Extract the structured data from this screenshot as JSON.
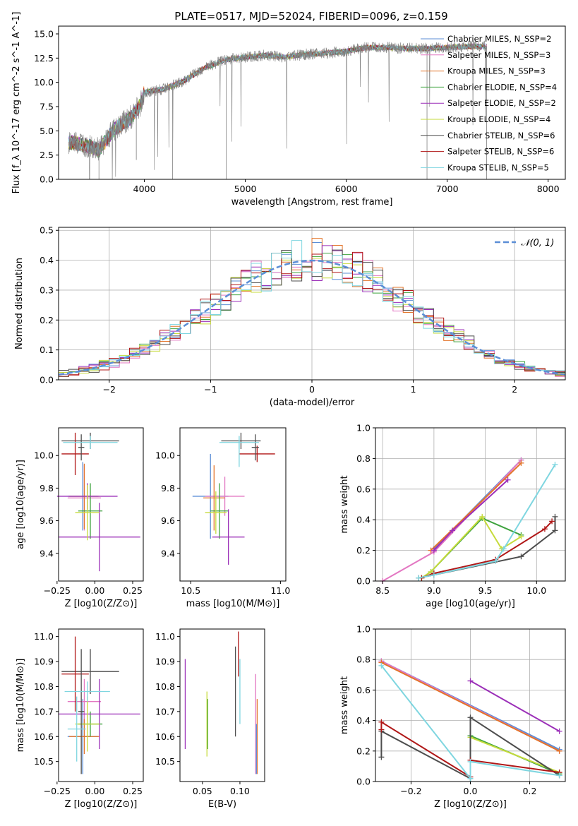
{
  "title": "PLATE=0517, MJD=52024, FIBERID=0096, z=0.159",
  "colors": {
    "chabrier_miles": "#5b8ed6",
    "salpeter_miles": "#e377c2",
    "kroupa_miles": "#e3742a",
    "chabrier_elodie": "#3fa33f",
    "salpeter_elodie": "#9b2fb8",
    "kroupa_elodie": "#c6db3c",
    "chabrier_stelib": "#4d4d4d",
    "salpeter_stelib": "#b01717",
    "kroupa_stelib": "#7fd6e0",
    "data_gray": "#808080",
    "gaussian": "#5b8ed6",
    "grid": "#b0b0b0"
  },
  "chart_data": [
    {
      "id": "spectrum",
      "type": "line",
      "title": "PLATE=0517, MJD=52024, FIBERID=0096, z=0.159",
      "xlabel": "wavelength [Angstrom, rest frame]",
      "ylabel": "Flux [f_λ 10^-17 erg cm^-2 s^-1 A^-1]",
      "xlim": [
        3150,
        8170
      ],
      "ylim": [
        0,
        15.8
      ],
      "xticks": [
        "4000",
        "5000",
        "6000",
        "7000",
        "8000"
      ],
      "yticks": [
        "0.0",
        "2.5",
        "5.0",
        "7.5",
        "10.0",
        "12.5",
        "15.0"
      ],
      "xtick_values": [
        4000,
        5000,
        6000,
        7000,
        8000
      ],
      "ytick_values": [
        0,
        2.5,
        5,
        7.5,
        10,
        12.5,
        15
      ],
      "grid": false,
      "legend_position": "top-right",
      "legend": [
        {
          "label": "Chabrier MILES, N_SSP=2",
          "color": "#5b8ed6"
        },
        {
          "label": "Salpeter MILES, N_SSP=3",
          "color": "#e377c2"
        },
        {
          "label": "Kroupa MILES, N_SSP=3",
          "color": "#e3742a"
        },
        {
          "label": "Chabrier ELODIE, N_SSP=4",
          "color": "#3fa33f"
        },
        {
          "label": "Salpeter ELODIE, N_SSP=2",
          "color": "#9b2fb8"
        },
        {
          "label": "Kroupa ELODIE, N_SSP=4",
          "color": "#c6db3c"
        },
        {
          "label": "Chabrier STELIB, N_SSP=6",
          "color": "#4d4d4d"
        },
        {
          "label": "Salpeter STELIB, N_SSP=6",
          "color": "#b01717"
        },
        {
          "label": "Kroupa STELIB, N_SSP=5",
          "color": "#7fd6e0"
        }
      ],
      "continuum": [
        [
          3250,
          3.8
        ],
        [
          3400,
          3.6
        ],
        [
          3550,
          3.0
        ],
        [
          3700,
          5.2
        ],
        [
          3850,
          6.2
        ],
        [
          3950,
          7.5
        ],
        [
          4000,
          9.0
        ],
        [
          4200,
          9.3
        ],
        [
          4400,
          10.2
        ],
        [
          4600,
          11.5
        ],
        [
          4800,
          12.3
        ],
        [
          5000,
          12.6
        ],
        [
          5200,
          12.8
        ],
        [
          5400,
          12.6
        ],
        [
          5600,
          12.9
        ],
        [
          5800,
          13.0
        ],
        [
          6000,
          13.2
        ],
        [
          6200,
          13.6
        ],
        [
          6400,
          13.6
        ],
        [
          6600,
          13.5
        ],
        [
          6800,
          13.5
        ],
        [
          7000,
          13.6
        ],
        [
          7200,
          13.7
        ],
        [
          7390,
          13.7
        ]
      ],
      "x_range": [
        3250,
        7390
      ]
    },
    {
      "id": "residuals",
      "type": "histogram",
      "xlabel": "(data-model)/error",
      "ylabel": "Normed distribution",
      "xlim": [
        -2.5,
        2.5
      ],
      "ylim": [
        0,
        0.51
      ],
      "xticks": [
        "−2",
        "−1",
        "0",
        "1",
        "2"
      ],
      "yticks": [
        "0.0",
        "0.1",
        "0.2",
        "0.3",
        "0.4",
        "0.5"
      ],
      "xtick_values": [
        -2,
        -1,
        0,
        1,
        2
      ],
      "ytick_values": [
        0,
        0.1,
        0.2,
        0.3,
        0.4,
        0.5
      ],
      "grid": true,
      "legend_position": "top-right",
      "gaussian_label": "𝒩(0, 1)",
      "bins": {
        "start": -2.5,
        "width": 0.1,
        "count": 50
      }
    },
    {
      "id": "age_vs_Z",
      "type": "errorbar",
      "xlabel": "Z [log10(Z/Z⊙)]",
      "ylabel": "age [log10(age/yr)]",
      "xlim": [
        -0.24,
        0.32
      ],
      "ylim": [
        9.23,
        10.17
      ],
      "xticks": [
        "−0.25",
        "0.00",
        "0.25"
      ],
      "yticks": [
        "9.4",
        "9.6",
        "9.8",
        "10.0"
      ],
      "xtick_values": [
        -0.25,
        0,
        0.25
      ],
      "ytick_values": [
        9.4,
        9.6,
        9.8,
        10.0
      ],
      "points": [
        {
          "c": "#5b8ed6",
          "x": -0.08,
          "xe": 0.1,
          "y": 9.75,
          "ye": 0.21
        },
        {
          "c": "#e377c2",
          "x": -0.07,
          "xe": 0.11,
          "y": 9.74,
          "ye": 0.2
        },
        {
          "c": "#e3742a",
          "x": -0.07,
          "xe": 0.1,
          "y": 9.75,
          "ye": 0.2
        },
        {
          "c": "#3fa33f",
          "x": -0.03,
          "xe": 0.08,
          "y": 9.66,
          "ye": 0.17
        },
        {
          "c": "#9b2fb8",
          "x": 0.03,
          "xe": 0.27,
          "y": 9.5,
          "ye": 0.21
        },
        {
          "c": "#9b2fb8",
          "x": -0.05,
          "xe": 0.2,
          "y": 9.75,
          "ye": 0.08
        },
        {
          "c": "#c6db3c",
          "x": -0.05,
          "xe": 0.08,
          "y": 9.65,
          "ye": 0.17
        },
        {
          "c": "#4d4d4d",
          "x": -0.03,
          "xe": 0.19,
          "y": 10.09,
          "ye": 0.05
        },
        {
          "c": "#b01717",
          "x": -0.13,
          "xe": 0.09,
          "y": 10.01,
          "ye": 0.13
        },
        {
          "c": "#4d4d4d",
          "x": -0.09,
          "xe": 0.02,
          "y": 10.05,
          "ye": 0.08
        },
        {
          "c": "#7fd6e0",
          "x": -0.03,
          "xe": 0.18,
          "y": 10.08,
          "ye": 0.04
        }
      ]
    },
    {
      "id": "age_vs_mass",
      "type": "errorbar",
      "xlabel": "mass [log10(M/M⊙)]",
      "ylabel": "",
      "xlim": [
        10.44,
        11.03
      ],
      "ylim": [
        9.23,
        10.17
      ],
      "xticks": [
        "10.5",
        "11.0"
      ],
      "yticks": [
        "9.4",
        "9.6",
        "9.8",
        "10.0"
      ],
      "xtick_values": [
        10.5,
        11.0
      ],
      "ytick_values": [
        9.4,
        9.6,
        9.8,
        10.0
      ],
      "points": [
        {
          "c": "#5b8ed6",
          "x": 10.61,
          "xe": 0.1,
          "y": 9.75,
          "ye": 0.26
        },
        {
          "c": "#e377c2",
          "x": 10.69,
          "xe": 0.11,
          "y": 9.75,
          "ye": 0.12
        },
        {
          "c": "#e3742a",
          "x": 10.63,
          "xe": 0.06,
          "y": 9.74,
          "ye": 0.2
        },
        {
          "c": "#3fa33f",
          "x": 10.66,
          "xe": 0.05,
          "y": 9.66,
          "ye": 0.17
        },
        {
          "c": "#9b2fb8",
          "x": 10.71,
          "xe": 0.09,
          "y": 9.5,
          "ye": 0.17
        },
        {
          "c": "#c6db3c",
          "x": 10.64,
          "xe": 0.06,
          "y": 9.65,
          "ye": 0.13
        },
        {
          "c": "#4d4d4d",
          "x": 10.78,
          "xe": 0.11,
          "y": 10.09,
          "ye": 0.05
        },
        {
          "c": "#b01717",
          "x": 10.87,
          "xe": 0.1,
          "y": 10.01,
          "ye": 0.05
        },
        {
          "c": "#4d4d4d",
          "x": 10.86,
          "xe": 0.02,
          "y": 10.05,
          "ye": 0.08
        },
        {
          "c": "#7fd6e0",
          "x": 10.77,
          "xe": 0.11,
          "y": 10.08,
          "ye": 0.04
        },
        {
          "c": "#7fd6e0",
          "x": 10.77,
          "xe": 0.0,
          "y": 10.01,
          "ye": 0.08
        }
      ]
    },
    {
      "id": "mass_weight_vs_age",
      "type": "line",
      "xlabel": "age [log10(age/yr)]",
      "ylabel": "mass weight",
      "xlim": [
        8.43,
        10.28
      ],
      "ylim": [
        0,
        1.0
      ],
      "xticks": [
        "8.5",
        "9.0",
        "9.5",
        "10.0"
      ],
      "yticks": [
        "0.0",
        "0.2",
        "0.4",
        "0.6",
        "0.8",
        "1.0"
      ],
      "xtick_values": [
        8.5,
        9.0,
        9.5,
        10.0
      ],
      "ytick_values": [
        0,
        0.2,
        0.4,
        0.6,
        0.8,
        1.0
      ],
      "grid": true,
      "series": [
        {
          "c": "#5b8ed6",
          "pts": [
            [
              9.0,
              0.21
            ],
            [
              9.85,
              0.79
            ]
          ]
        },
        {
          "c": "#e377c2",
          "pts": [
            [
              8.5,
              0.0
            ],
            [
              9.0,
              0.19
            ],
            [
              9.85,
              0.79
            ]
          ]
        },
        {
          "c": "#e3742a",
          "pts": [
            [
              8.97,
              0.2
            ],
            [
              9.85,
              0.77
            ]
          ]
        },
        {
          "c": "#3fa33f",
          "pts": [
            [
              8.88,
              0.02
            ],
            [
              8.97,
              0.06
            ],
            [
              9.47,
              0.41
            ],
            [
              9.85,
              0.3
            ]
          ]
        },
        {
          "c": "#9b2fb8",
          "pts": [
            [
              9.0,
              0.2
            ],
            [
              9.18,
              0.33
            ],
            [
              9.72,
              0.66
            ]
          ]
        },
        {
          "c": "#c6db3c",
          "pts": [
            [
              8.88,
              0.02
            ],
            [
              8.97,
              0.06
            ],
            [
              9.47,
              0.42
            ],
            [
              9.66,
              0.21
            ],
            [
              9.85,
              0.29
            ]
          ]
        },
        {
          "c": "#4d4d4d",
          "pts": [
            [
              8.85,
              0.02
            ],
            [
              9.0,
              0.04
            ],
            [
              9.85,
              0.16
            ],
            [
              10.18,
              0.33
            ],
            [
              10.18,
              0.42
            ]
          ]
        },
        {
          "c": "#b01717",
          "pts": [
            [
              8.88,
              0.02
            ],
            [
              9.0,
              0.05
            ],
            [
              9.6,
              0.14
            ],
            [
              10.08,
              0.34
            ],
            [
              10.15,
              0.39
            ]
          ]
        },
        {
          "c": "#7fd6e0",
          "pts": [
            [
              8.85,
              0.02
            ],
            [
              9.0,
              0.04
            ],
            [
              9.6,
              0.13
            ],
            [
              9.68,
              0.21
            ],
            [
              10.18,
              0.76
            ]
          ]
        }
      ]
    },
    {
      "id": "mass_vs_Z",
      "type": "errorbar",
      "xlabel": "Z [log10(Z/Z⊙)]",
      "ylabel": "mass [log10(M/M⊙)]",
      "xlim": [
        -0.24,
        0.32
      ],
      "ylim": [
        10.42,
        11.03
      ],
      "xticks": [
        "−0.25",
        "0.00",
        "0.25"
      ],
      "yticks": [
        "10.5",
        "10.6",
        "10.7",
        "10.8",
        "10.9",
        "11.0"
      ],
      "xtick_values": [
        -0.25,
        0,
        0.25
      ],
      "ytick_values": [
        10.5,
        10.6,
        10.7,
        10.8,
        10.9,
        11.0
      ],
      "points": [
        {
          "c": "#5b8ed6",
          "x": -0.08,
          "xe": 0.1,
          "y": 10.6,
          "ye": 0.15
        },
        {
          "c": "#e377c2",
          "x": -0.07,
          "xe": 0.11,
          "y": 10.74,
          "ye": 0.09
        },
        {
          "c": "#e3742a",
          "x": -0.07,
          "xe": 0.1,
          "y": 10.6,
          "ye": 0.07
        },
        {
          "c": "#3fa33f",
          "x": -0.03,
          "xe": 0.08,
          "y": 10.65,
          "ye": 0.05
        },
        {
          "c": "#9b2fb8",
          "x": 0.03,
          "xe": 0.27,
          "y": 10.69,
          "ye": 0.14
        },
        {
          "c": "#c6db3c",
          "x": -0.05,
          "xe": 0.08,
          "y": 10.65,
          "ye": 0.11
        },
        {
          "c": "#4d4d4d",
          "x": -0.03,
          "xe": 0.19,
          "y": 10.86,
          "ye": 0.09
        },
        {
          "c": "#b01717",
          "x": -0.13,
          "xe": 0.09,
          "y": 10.85,
          "ye": 0.15
        },
        {
          "c": "#4d4d4d",
          "x": -0.09,
          "xe": 0.02,
          "y": 10.7,
          "ye": 0.25
        },
        {
          "c": "#7fd6e0",
          "x": -0.05,
          "xe": 0.15,
          "y": 10.78,
          "ye": 0.04
        },
        {
          "c": "#7fd6e0",
          "x": -0.12,
          "xe": 0.06,
          "y": 10.63,
          "ye": 0.13
        }
      ]
    },
    {
      "id": "ebv",
      "type": "errorbar",
      "xlabel": "E(B-V)",
      "ylabel": "",
      "xlim": [
        0.02,
        0.133
      ],
      "ylim": [
        10.42,
        11.03
      ],
      "xticks": [
        "0.05",
        "0.10"
      ],
      "yticks": [
        "10.5",
        "10.6",
        "10.7",
        "10.8",
        "10.9",
        "11.0"
      ],
      "xtick_values": [
        0.05,
        0.1
      ],
      "ytick_values": [
        10.5,
        10.6,
        10.7,
        10.8,
        10.9,
        11.0
      ],
      "points": [
        {
          "c": "#9b2fb8",
          "x": 0.027,
          "xe": 0,
          "y": 10.73,
          "ye": 0.18
        },
        {
          "c": "#3fa33f",
          "x": 0.057,
          "xe": 0,
          "y": 10.65,
          "ye": 0.1
        },
        {
          "c": "#c6db3c",
          "x": 0.056,
          "xe": 0,
          "y": 10.65,
          "ye": 0.13
        },
        {
          "c": "#4d4d4d",
          "x": 0.094,
          "xe": 0,
          "y": 10.78,
          "ye": 0.18
        },
        {
          "c": "#b01717",
          "x": 0.098,
          "xe": 0,
          "y": 10.93,
          "ye": 0.09
        },
        {
          "c": "#7fd6e0",
          "x": 0.1,
          "xe": 0,
          "y": 10.78,
          "ye": 0.13
        },
        {
          "c": "#e377c2",
          "x": 0.121,
          "xe": 0,
          "y": 10.65,
          "ye": 0.2
        },
        {
          "c": "#e3742a",
          "x": 0.123,
          "xe": 0,
          "y": 10.6,
          "ye": 0.15
        },
        {
          "c": "#5b8ed6",
          "x": 0.122,
          "xe": 0,
          "y": 10.55,
          "ye": 0.1
        }
      ]
    },
    {
      "id": "mass_weight_vs_Z",
      "type": "line",
      "xlabel": "Z [log10(Z/Z⊙)]",
      "ylabel": "mass weight",
      "xlim": [
        -0.32,
        0.32
      ],
      "ylim": [
        0,
        1.0
      ],
      "xticks": [
        "−0.2",
        "0.0",
        "0.2"
      ],
      "yticks": [
        "0.0",
        "0.2",
        "0.4",
        "0.6",
        "0.8",
        "1.0"
      ],
      "xtick_values": [
        -0.2,
        0.0,
        0.2
      ],
      "ytick_values": [
        0,
        0.2,
        0.4,
        0.6,
        0.8,
        1.0
      ],
      "grid": true,
      "series": [
        {
          "c": "#5b8ed6",
          "pts": [
            [
              -0.3,
              0.79
            ],
            [
              0.3,
              0.21
            ]
          ]
        },
        {
          "c": "#e377c2",
          "pts": [
            [
              -0.3,
              0.79
            ],
            [
              0.3,
              0.2
            ]
          ]
        },
        {
          "c": "#e3742a",
          "pts": [
            [
              -0.3,
              0.78
            ],
            [
              0.3,
              0.2
            ]
          ]
        },
        {
          "c": "#9b2fb8",
          "pts": [
            [
              0.0,
              0.66
            ],
            [
              0.3,
              0.33
            ]
          ]
        },
        {
          "c": "#3fa33f",
          "pts": [
            [
              0.0,
              0.3
            ],
            [
              0.3,
              0.05
            ]
          ]
        },
        {
          "c": "#c6db3c",
          "pts": [
            [
              0.0,
              0.29
            ],
            [
              0.3,
              0.06
            ]
          ]
        },
        {
          "c": "#4d4d4d",
          "pts": [
            [
              -0.3,
              0.16
            ],
            [
              -0.3,
              0.33
            ],
            [
              0.0,
              0.02
            ],
            [
              0.0,
              0.42
            ],
            [
              0.3,
              0.04
            ]
          ]
        },
        {
          "c": "#b01717",
          "pts": [
            [
              -0.3,
              0.34
            ],
            [
              -0.3,
              0.39
            ],
            [
              0.0,
              0.03
            ],
            [
              0.0,
              0.14
            ],
            [
              0.3,
              0.06
            ]
          ]
        },
        {
          "c": "#7fd6e0",
          "pts": [
            [
              -0.3,
              0.76
            ],
            [
              0.0,
              0.02
            ],
            [
              0.0,
              0.13
            ],
            [
              0.3,
              0.04
            ]
          ]
        }
      ]
    }
  ]
}
